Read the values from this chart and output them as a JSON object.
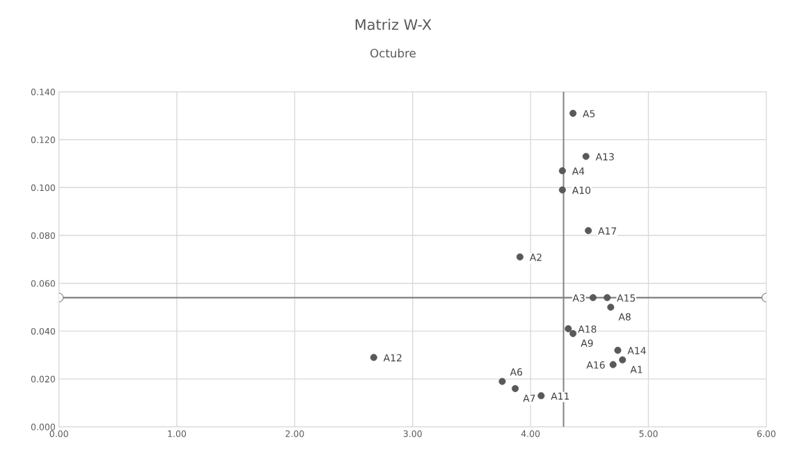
{
  "chart_data": {
    "type": "scatter",
    "title": "Matriz W-X",
    "subtitle": "Octubre",
    "x": [
      4.36,
      4.47,
      4.27,
      4.27,
      4.49,
      3.91,
      4.53,
      4.65,
      4.68,
      4.32,
      4.36,
      4.74,
      4.78,
      4.7,
      3.76,
      3.87,
      4.09,
      2.67
    ],
    "series": [
      {
        "color": "#595959",
        "values": [
          0.131,
          0.113,
          0.107,
          0.099,
          0.082,
          0.071,
          0.054,
          0.054,
          0.05,
          0.041,
          0.039,
          0.032,
          0.028,
          0.026,
          0.019,
          0.016,
          0.013,
          0.029
        ],
        "marker": "circle"
      },
      {
        "type": "line",
        "color": "#7f7f7f",
        "x": [
          0,
          6
        ],
        "values": [
          0.054,
          0.054
        ],
        "marker": "circle"
      }
    ],
    "annotations": [
      {
        "text": "A5",
        "x": 4.36,
        "y": 0.131
      },
      {
        "text": "A13",
        "x": 4.47,
        "y": 0.113
      },
      {
        "text": "A4",
        "x": 4.27,
        "y": 0.107
      },
      {
        "text": "A10",
        "x": 4.27,
        "y": 0.099
      },
      {
        "text": "A17",
        "x": 4.49,
        "y": 0.082
      },
      {
        "text": "A2",
        "x": 3.91,
        "y": 0.071
      },
      {
        "text": "A3",
        "x": 4.53,
        "y": 0.054
      },
      {
        "text": "A15",
        "x": 4.65,
        "y": 0.054
      },
      {
        "text": "A8",
        "x": 4.68,
        "y": 0.05
      },
      {
        "text": "A18",
        "x": 4.32,
        "y": 0.041
      },
      {
        "text": "A9",
        "x": 4.36,
        "y": 0.039
      },
      {
        "text": "A14",
        "x": 4.74,
        "y": 0.032
      },
      {
        "text": "A1",
        "x": 4.78,
        "y": 0.028
      },
      {
        "text": "A16",
        "x": 4.7,
        "y": 0.026
      },
      {
        "text": "A6",
        "x": 3.76,
        "y": 0.019
      },
      {
        "text": "A7",
        "x": 3.87,
        "y": 0.016
      },
      {
        "text": "A11",
        "x": 4.09,
        "y": 0.013
      },
      {
        "text": "A12",
        "x": 2.67,
        "y": 0.029
      }
    ],
    "ref_lines": [
      {
        "axis": "x",
        "value": 4.28,
        "color": "#7f7f7f"
      }
    ],
    "xlim": [
      0,
      6
    ],
    "xticks": [
      {
        "value": 0,
        "label": "0.00"
      },
      {
        "value": 1,
        "label": "1.00"
      },
      {
        "value": 2,
        "label": "2.00"
      },
      {
        "value": 3,
        "label": "3.00"
      },
      {
        "value": 4,
        "label": "4.00"
      },
      {
        "value": 5,
        "label": "5.00"
      },
      {
        "value": 6,
        "label": "6.00"
      }
    ],
    "ylim": [
      0,
      0.14
    ],
    "yticks": [
      {
        "value": 0,
        "label": "0.000"
      },
      {
        "value": 0.02,
        "label": "0.020"
      },
      {
        "value": 0.04,
        "label": "0.040"
      },
      {
        "value": 0.06,
        "label": "0.060"
      },
      {
        "value": 0.08,
        "label": "0.080"
      },
      {
        "value": 0.1,
        "label": "0.100"
      },
      {
        "value": 0.12,
        "label": "0.120"
      },
      {
        "value": 0.14,
        "label": "0.140"
      }
    ],
    "grid": true
  }
}
